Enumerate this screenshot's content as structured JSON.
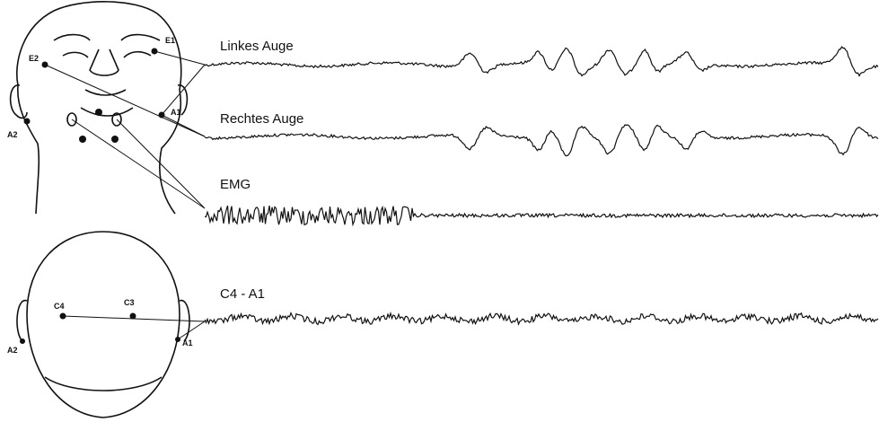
{
  "traces": [
    {
      "label": "Linkes Auge"
    },
    {
      "label": "Rechtes Auge"
    },
    {
      "label": "EMG"
    },
    {
      "label": "C4 - A1"
    }
  ],
  "face": {
    "electrodes": [
      "E1",
      "E2",
      "A1",
      "A2"
    ]
  },
  "head_top": {
    "electrodes": [
      "C4",
      "C3",
      "A2",
      "A1"
    ]
  }
}
